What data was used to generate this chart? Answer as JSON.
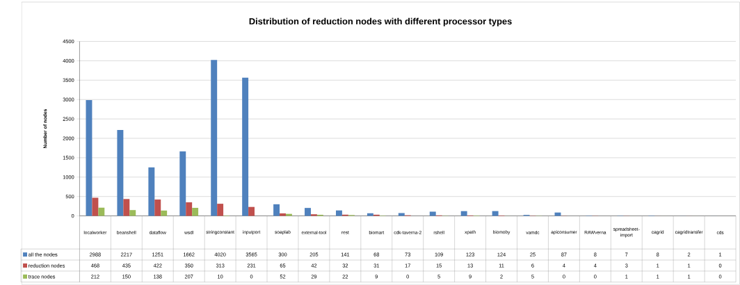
{
  "chart_data": {
    "type": "bar",
    "title": "Distribution of reduction nodes with different processor types",
    "ylabel": "Number of nodes",
    "categories": [
      "localworker",
      "beanshell",
      "dataflow",
      "wsdl",
      "stringconstant",
      "inputport",
      "soaplab",
      "external-tool",
      "rest",
      "biomart",
      "cdk-taverna-2",
      "rshell",
      "xpath",
      "biomoby",
      "vamdc",
      "apiconsumer",
      "RAWverna",
      "spreadsheet-import",
      "cagrid",
      "cagridtransfer",
      "cds"
    ],
    "series": [
      {
        "name": "all the nodes",
        "color": "#4f81bd",
        "values": [
          2988,
          2217,
          1251,
          1662,
          4020,
          3565,
          300,
          205,
          141,
          68,
          73,
          109,
          123,
          124,
          25,
          87,
          8,
          7,
          8,
          2,
          1
        ]
      },
      {
        "name": "reduction nodes",
        "color": "#c0504d",
        "values": [
          468,
          435,
          422,
          350,
          313,
          231,
          65,
          42,
          32,
          31,
          17,
          15,
          13,
          11,
          6,
          4,
          4,
          3,
          1,
          1,
          0
        ]
      },
      {
        "name": "trace nodes",
        "color": "#9bbb59",
        "values": [
          212,
          150,
          138,
          207,
          10,
          0,
          52,
          29,
          22,
          9,
          0,
          5,
          9,
          2,
          5,
          0,
          0,
          1,
          1,
          1,
          0
        ]
      }
    ],
    "ylim": [
      0,
      4500
    ],
    "yticks": [
      0,
      500,
      1000,
      1500,
      2000,
      2500,
      3000,
      3500,
      4000,
      4500
    ],
    "grid": "y",
    "data_labels": true,
    "legend": "bottom left"
  }
}
